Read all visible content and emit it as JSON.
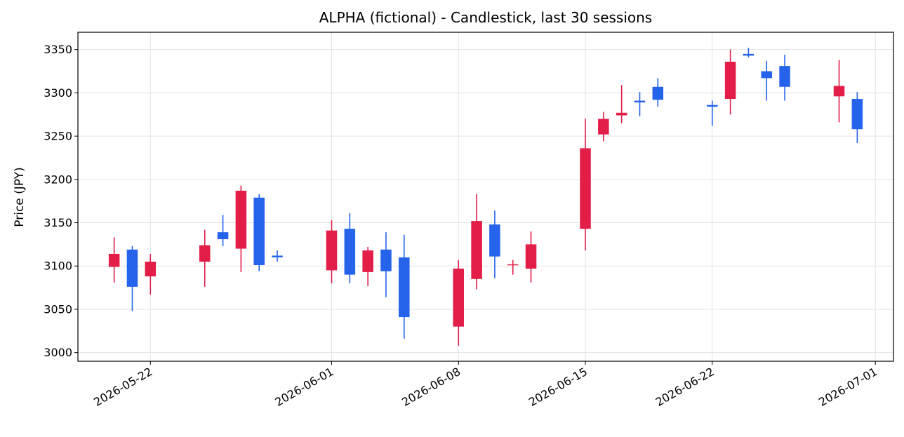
{
  "chart_data": {
    "type": "candlestick",
    "title": "ALPHA (fictional) - Candlestick, last 30 sessions",
    "xlabel": "",
    "ylabel": "Price (JPY)",
    "ylim": [
      2990,
      3370
    ],
    "xlim": [
      "2026-05-18",
      "2026-07-02"
    ],
    "grid": true,
    "yticks": [
      3000,
      3050,
      3100,
      3150,
      3200,
      3250,
      3300,
      3350
    ],
    "xticks": [
      "2026-05-22",
      "2026-06-01",
      "2026-06-08",
      "2026-06-15",
      "2026-06-22",
      "2026-07-01"
    ],
    "colors": {
      "up": "#2563eb",
      "down": "#e11d48"
    },
    "candles": [
      {
        "date": "2026-05-20",
        "open": 3114,
        "high": 3133,
        "low": 3081,
        "close": 3099
      },
      {
        "date": "2026-05-21",
        "open": 3076,
        "high": 3123,
        "low": 3048,
        "close": 3119
      },
      {
        "date": "2026-05-22",
        "open": 3105,
        "high": 3114,
        "low": 3067,
        "close": 3088
      },
      {
        "date": "2026-05-25",
        "open": 3124,
        "high": 3142,
        "low": 3076,
        "close": 3105
      },
      {
        "date": "2026-05-26",
        "open": 3131,
        "high": 3159,
        "low": 3123,
        "close": 3139
      },
      {
        "date": "2026-05-27",
        "open": 3187,
        "high": 3193,
        "low": 3093,
        "close": 3120
      },
      {
        "date": "2026-05-28",
        "open": 3101,
        "high": 3183,
        "low": 3094,
        "close": 3179
      },
      {
        "date": "2026-05-29",
        "open": 3110,
        "high": 3118,
        "low": 3105,
        "close": 3112
      },
      {
        "date": "2026-06-01",
        "open": 3141,
        "high": 3153,
        "low": 3080,
        "close": 3095
      },
      {
        "date": "2026-06-02",
        "open": 3090,
        "high": 3161,
        "low": 3080,
        "close": 3143
      },
      {
        "date": "2026-06-03",
        "open": 3118,
        "high": 3122,
        "low": 3077,
        "close": 3093
      },
      {
        "date": "2026-06-04",
        "open": 3094,
        "high": 3139,
        "low": 3064,
        "close": 3119
      },
      {
        "date": "2026-06-05",
        "open": 3041,
        "high": 3136,
        "low": 3016,
        "close": 3110
      },
      {
        "date": "2026-06-08",
        "open": 3097,
        "high": 3107,
        "low": 3008,
        "close": 3030
      },
      {
        "date": "2026-06-09",
        "open": 3152,
        "high": 3183,
        "low": 3073,
        "close": 3085
      },
      {
        "date": "2026-06-10",
        "open": 3111,
        "high": 3164,
        "low": 3086,
        "close": 3148
      },
      {
        "date": "2026-06-11",
        "open": 3102,
        "high": 3107,
        "low": 3090,
        "close": 3101
      },
      {
        "date": "2026-06-12",
        "open": 3125,
        "high": 3140,
        "low": 3081,
        "close": 3097
      },
      {
        "date": "2026-06-15",
        "open": 3236,
        "high": 3270,
        "low": 3118,
        "close": 3143
      },
      {
        "date": "2026-06-16",
        "open": 3270,
        "high": 3278,
        "low": 3244,
        "close": 3252
      },
      {
        "date": "2026-06-17",
        "open": 3277,
        "high": 3309,
        "low": 3265,
        "close": 3274
      },
      {
        "date": "2026-06-18",
        "open": 3289,
        "high": 3301,
        "low": 3273,
        "close": 3291
      },
      {
        "date": "2026-06-19",
        "open": 3292,
        "high": 3317,
        "low": 3284,
        "close": 3307
      },
      {
        "date": "2026-06-22",
        "open": 3284,
        "high": 3291,
        "low": 3262,
        "close": 3286
      },
      {
        "date": "2026-06-23",
        "open": 3336,
        "high": 3350,
        "low": 3275,
        "close": 3293
      },
      {
        "date": "2026-06-24",
        "open": 3343,
        "high": 3352,
        "low": 3341,
        "close": 3345
      },
      {
        "date": "2026-06-25",
        "open": 3317,
        "high": 3337,
        "low": 3291,
        "close": 3325
      },
      {
        "date": "2026-06-26",
        "open": 3307,
        "high": 3344,
        "low": 3291,
        "close": 3331
      },
      {
        "date": "2026-06-29",
        "open": 3308,
        "high": 3338,
        "low": 3266,
        "close": 3296
      },
      {
        "date": "2026-06-30",
        "open": 3258,
        "high": 3301,
        "low": 3242,
        "close": 3293
      }
    ]
  }
}
